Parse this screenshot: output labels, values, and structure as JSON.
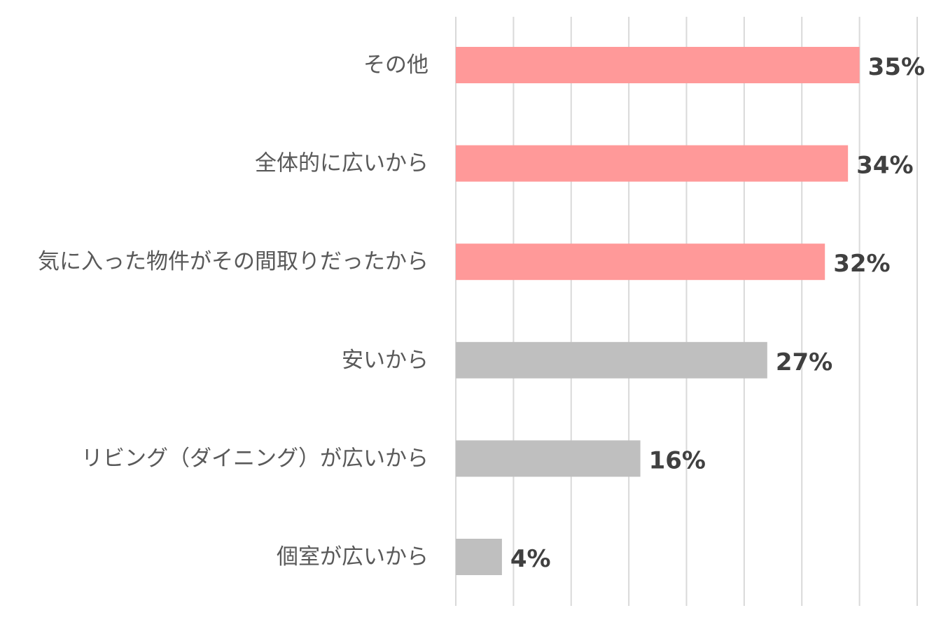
{
  "chart_data": {
    "type": "bar",
    "orientation": "horizontal",
    "categories": [
      "その他",
      "全体的に広いから",
      "気に入った物件がその間取りだったから",
      "安いから",
      "リビング（ダイニング）が広いから",
      "個室が広いから"
    ],
    "values": [
      35,
      34,
      32,
      27,
      16,
      4
    ],
    "value_labels": [
      "35%",
      "34%",
      "32%",
      "27%",
      "16%",
      "4%"
    ],
    "bar_colors": [
      "#ff9999",
      "#ff9999",
      "#ff9999",
      "#bfbfbf",
      "#bfbfbf",
      "#bfbfbf"
    ],
    "xlim": [
      0,
      40
    ],
    "grid_step": 5,
    "grid": true,
    "legend": false
  }
}
